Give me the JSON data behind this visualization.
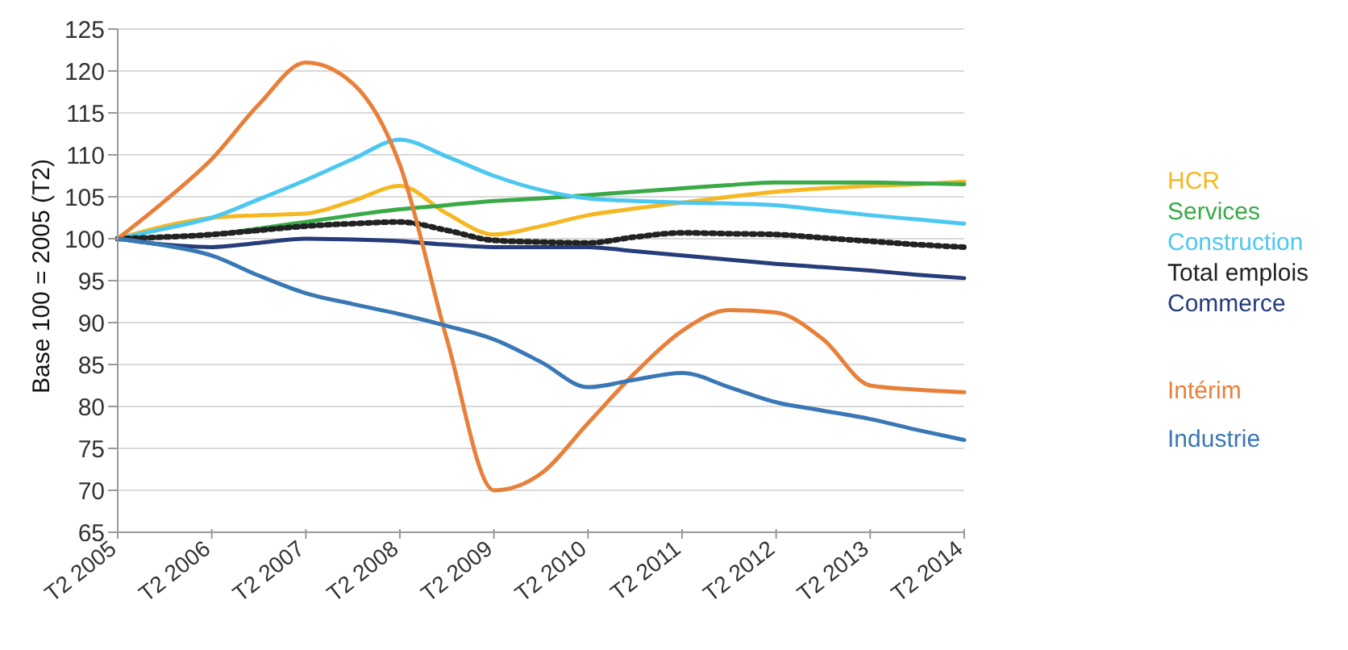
{
  "chart_data": {
    "type": "line",
    "ylabel": "Base 100 = 2005 (T2)",
    "categories": [
      "T2 2005",
      null,
      "T2 2006",
      null,
      "T2 2007",
      null,
      "T2 2008",
      null,
      "T2 2009",
      null,
      "T2 2010",
      null,
      "T2 2011",
      null,
      "T2 2012",
      null,
      "T2 2013",
      null,
      "T2 2014"
    ],
    "ylim": [
      65,
      125
    ],
    "yticks": [
      65,
      70,
      75,
      80,
      85,
      90,
      95,
      100,
      105,
      110,
      115,
      120,
      125
    ],
    "grid": "y",
    "legend": "right",
    "marker": "none",
    "line_style": "solid",
    "series": [
      {
        "name": "HCR",
        "color": "#f5b823",
        "values": [
          100,
          101.5,
          102.5,
          102.8,
          103,
          104.5,
          106.3,
          103,
          100.5,
          101.5,
          102.8,
          103.6,
          104.3,
          105,
          105.6,
          106,
          106.3,
          106.5,
          106.8
        ]
      },
      {
        "name": "Services",
        "color": "#3aaa48",
        "values": [
          100,
          100.2,
          100.5,
          101.2,
          102,
          102.8,
          103.5,
          104,
          104.5,
          104.8,
          105.2,
          105.6,
          106,
          106.4,
          106.7,
          106.7,
          106.7,
          106.6,
          106.5
        ]
      },
      {
        "name": "Construction",
        "color": "#4cc8f0",
        "values": [
          100,
          101.2,
          102.5,
          104.7,
          107,
          109.5,
          111.8,
          109.8,
          107.5,
          105.8,
          104.8,
          104.5,
          104.3,
          104.2,
          104,
          103.4,
          102.8,
          102.3,
          101.8
        ]
      },
      {
        "name": "Total emplois",
        "color": "#222222",
        "line_style": "dotted",
        "values": [
          100,
          100.2,
          100.5,
          101,
          101.5,
          101.8,
          102,
          101,
          99.8,
          99.6,
          99.5,
          100.2,
          100.7,
          100.6,
          100.5,
          100.1,
          99.7,
          99.3,
          99
        ]
      },
      {
        "name": "Commerce",
        "color": "#263d7a",
        "values": [
          100,
          99.3,
          99,
          99.5,
          100,
          99.9,
          99.7,
          99.3,
          99,
          99,
          99,
          98.5,
          98,
          97.5,
          97,
          96.6,
          96.2,
          95.7,
          95.3
        ]
      },
      {
        "name": "Intérim",
        "color": "#e8803a",
        "values": [
          100,
          104.5,
          109.5,
          116,
          121,
          118.5,
          108.8,
          88,
          70,
          72,
          78,
          84,
          89,
          91.5,
          91.2,
          88,
          82.5,
          82,
          81.7
        ]
      },
      {
        "name": "Industrie",
        "color": "#3a78b5",
        "values": [
          100,
          99.2,
          98,
          95.6,
          93.5,
          92.2,
          91,
          89.6,
          88,
          85.3,
          82.3,
          83.2,
          84,
          82.3,
          80.5,
          79.5,
          78.5,
          77.2,
          76
        ]
      }
    ]
  }
}
